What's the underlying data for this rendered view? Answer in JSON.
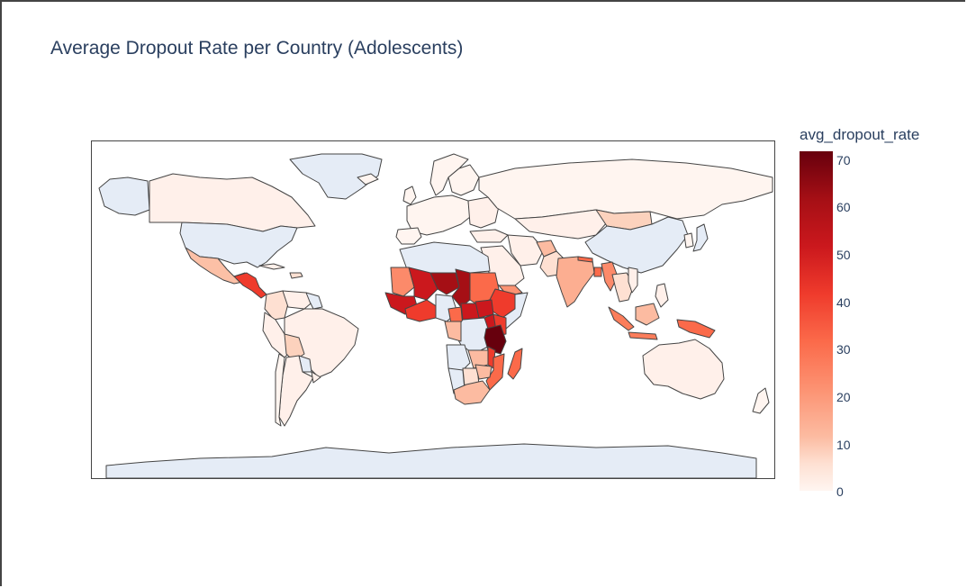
{
  "title": "Average Dropout Rate per Country (Adolescents)",
  "colorbar": {
    "title": "avg_dropout_rate",
    "min": 0,
    "max": 71,
    "ticks": [
      "70",
      "60",
      "50",
      "40",
      "30",
      "20",
      "10",
      "0"
    ],
    "colorscale": "Reds"
  },
  "colors": {
    "no_data": "#e5ecf6",
    "border": "#444444",
    "low": "#fff5f0",
    "high": "#67000d"
  }
}
